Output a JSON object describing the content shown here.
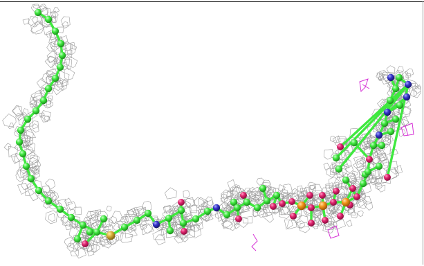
{
  "scene": {
    "subject": "ball-and-stick-ligand-in-density-mesh",
    "colors": {
      "background": "#ffffff",
      "carbon": "#3fe83f",
      "oxygen": "#e0236e",
      "nitrogen": "#3535c8",
      "phosphorus": "#f39419",
      "sulfur": "#d9b03a",
      "mesh": "#8a8a8a",
      "difference_mesh": "#d633d6"
    }
  }
}
